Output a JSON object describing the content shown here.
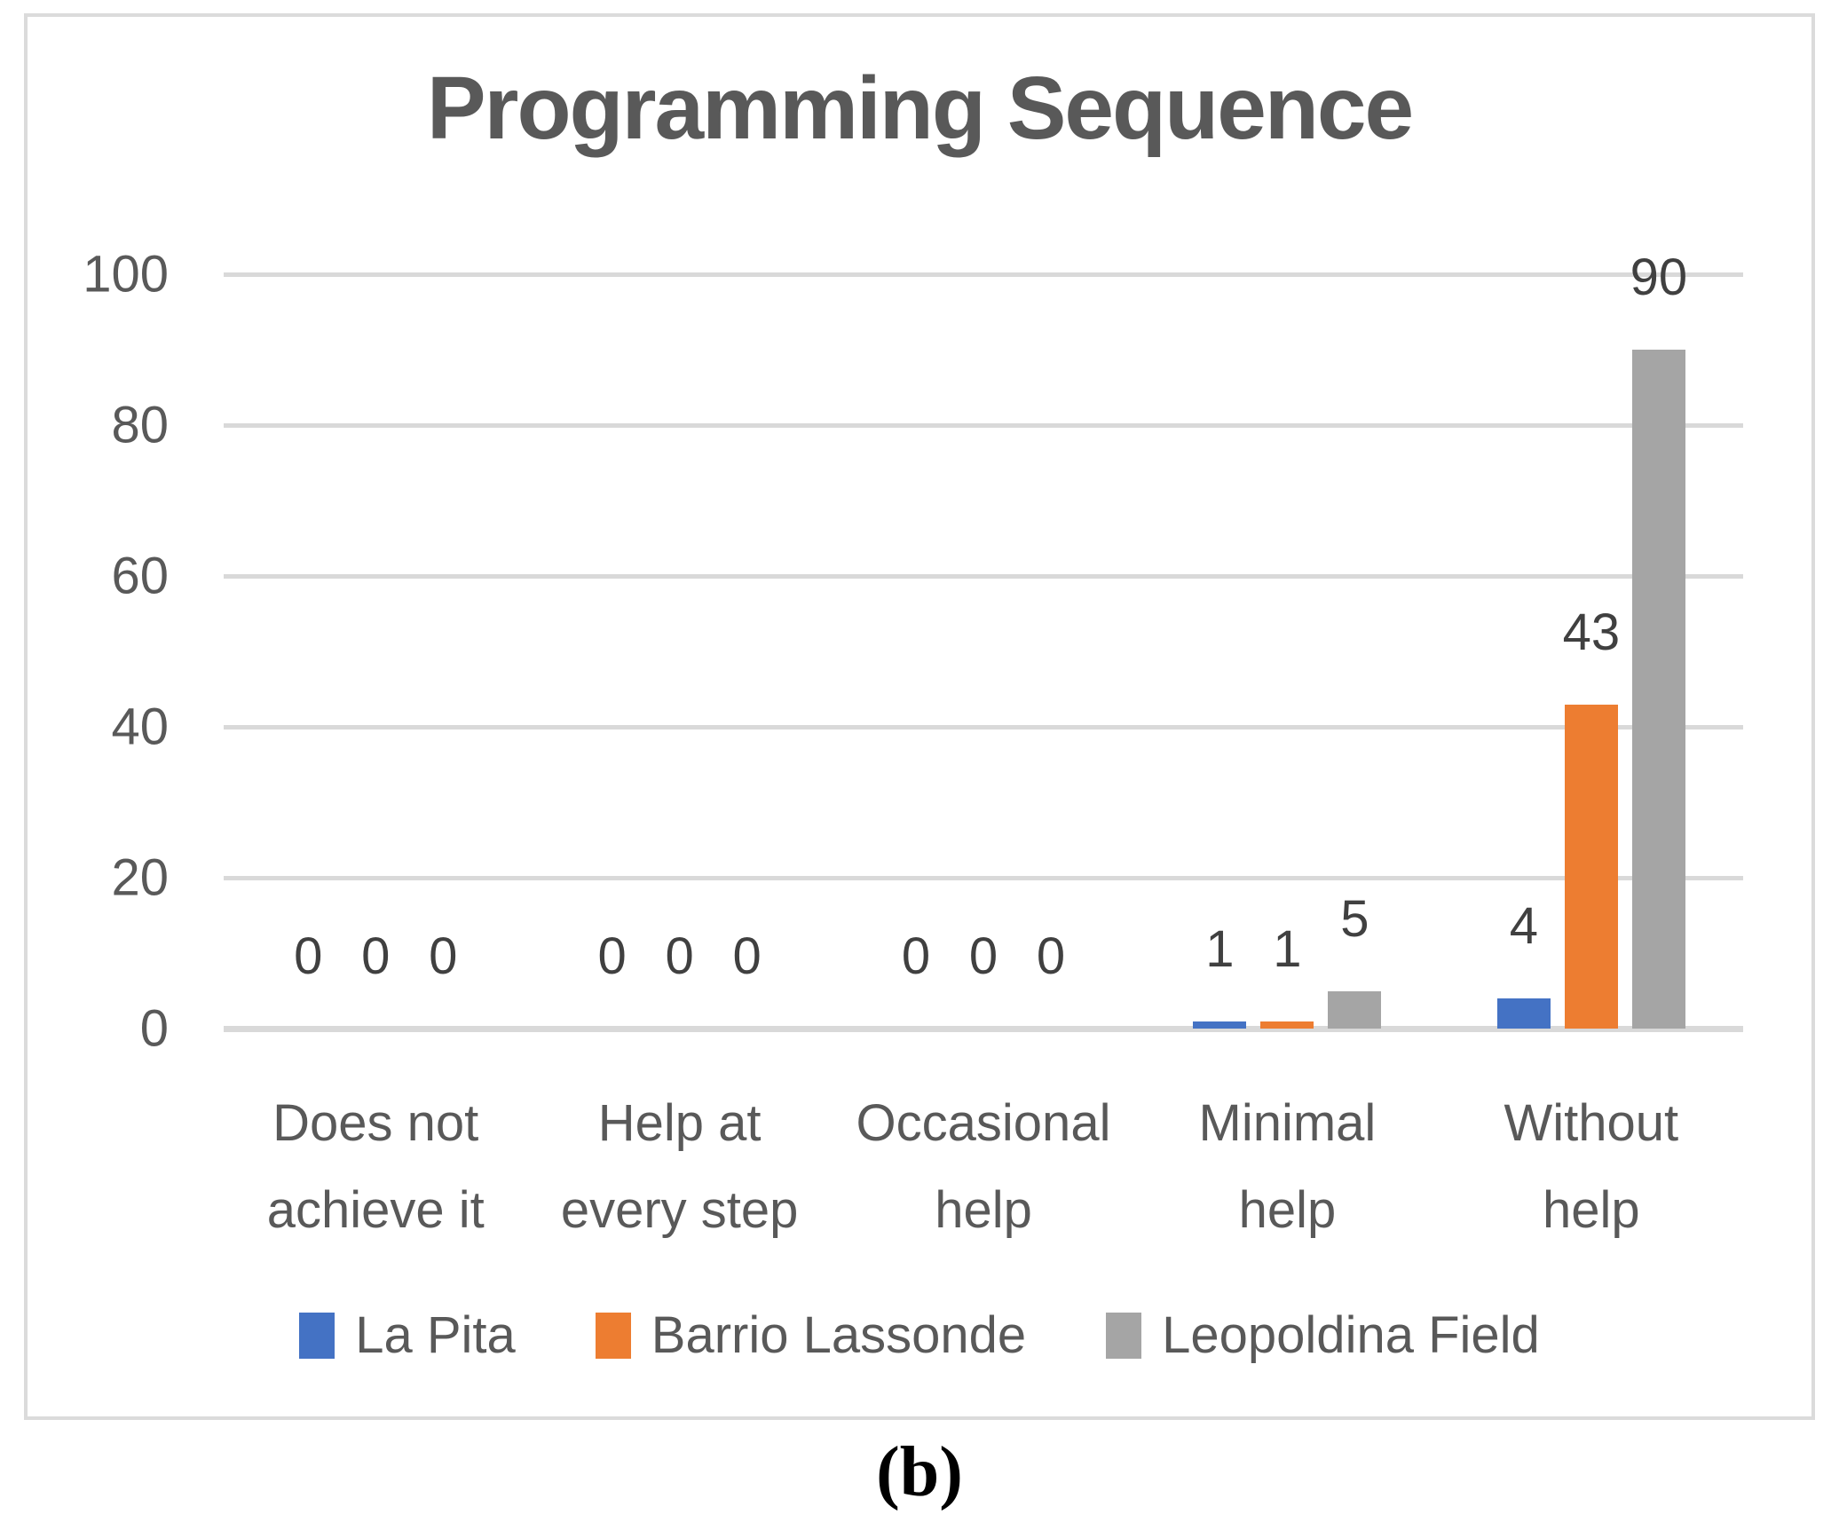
{
  "figure": {
    "caption": "(b)"
  },
  "chart_data": {
    "type": "bar",
    "title": "Programming Sequence",
    "categories": [
      "Does not\nachieve it",
      "Help at\nevery step",
      "Occasional\nhelp",
      "Minimal\nhelp",
      "Without\nhelp"
    ],
    "series": [
      {
        "name": "La Pita",
        "color": "#4472C4",
        "values": [
          0,
          0,
          0,
          1,
          4
        ]
      },
      {
        "name": "Barrio Lassonde",
        "color": "#ED7D31",
        "values": [
          0,
          0,
          0,
          1,
          43
        ]
      },
      {
        "name": "Leopoldina Field",
        "color": "#A5A5A5",
        "values": [
          0,
          0,
          0,
          5,
          90
        ]
      }
    ],
    "ylim": [
      0,
      100
    ],
    "yticks": [
      0,
      20,
      40,
      60,
      80,
      100
    ],
    "grid": true,
    "legend_position": "bottom",
    "data_labels": "outside-end",
    "styles": {
      "title_color": "#595959",
      "axis_text_color": "#595959",
      "data_label_color": "#404040",
      "gridline_color": "#D9D9D9",
      "frame_border_color": "#DBDBDB"
    }
  }
}
